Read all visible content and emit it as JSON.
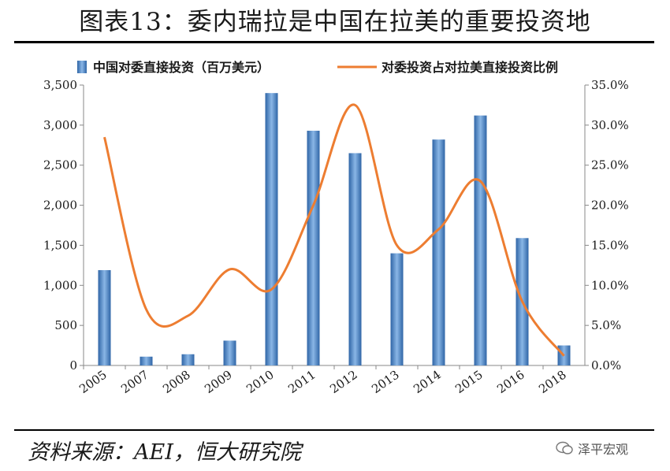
{
  "title": "图表13：委内瑞拉是中国在拉美的重要投资地",
  "source": "资料来源：AEI，恒大研究院",
  "watermark": "泽平宏观",
  "colors": {
    "bar": "#3d78b8",
    "bar_light": "#7eaee0",
    "line": "#ed7d31"
  },
  "chart_data": {
    "type": "bar",
    "title": "",
    "categories": [
      "2005",
      "2007",
      "2008",
      "2009",
      "2010",
      "2011",
      "2012",
      "2013",
      "2014",
      "2015",
      "2016",
      "2018"
    ],
    "series": [
      {
        "name": "中国对委直接投资（百万美元）",
        "type": "bar",
        "axis": "left",
        "values": [
          1190,
          110,
          140,
          310,
          3400,
          2930,
          2650,
          1400,
          2820,
          3120,
          1590,
          250
        ]
      },
      {
        "name": "对委投资占对拉美直接投资比例",
        "type": "line",
        "axis": "right",
        "values": [
          28.5,
          7.0,
          6.2,
          12.0,
          9.5,
          20.0,
          32.5,
          15.0,
          17.0,
          23.0,
          8.0,
          1.2
        ]
      }
    ],
    "ylim_left": [
      0,
      3500
    ],
    "ylim_right": [
      0,
      35
    ],
    "left_ticks": [
      "0",
      "500",
      "1,000",
      "1,500",
      "2,000",
      "2,500",
      "3,000",
      "3,500"
    ],
    "right_ticks": [
      "0.0%",
      "5.0%",
      "10.0%",
      "15.0%",
      "20.0%",
      "25.0%",
      "30.0%",
      "35.0%"
    ],
    "legend_position": "top",
    "grid": false
  }
}
